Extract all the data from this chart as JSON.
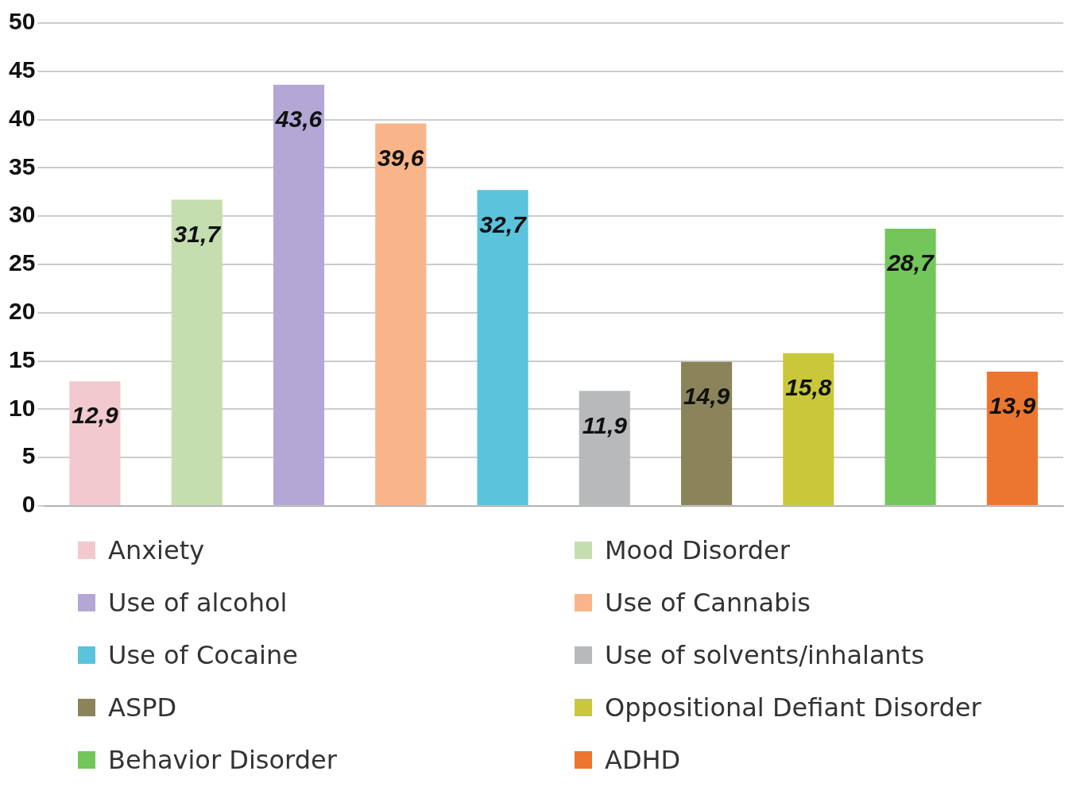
{
  "chart_data": {
    "type": "bar",
    "categories": [
      null,
      null,
      null,
      null,
      null,
      null,
      null,
      null,
      null,
      null
    ],
    "series": [
      {
        "name": "Anxiety",
        "color": "#f2c9cf",
        "values": [
          12.9,
          null,
          null,
          null,
          null,
          null,
          null,
          null,
          null,
          null
        ],
        "value_labels": [
          "12,9",
          null,
          null,
          null,
          null,
          null,
          null,
          null,
          null,
          null
        ]
      },
      {
        "name": "Mood Disorder",
        "color": "#c5deb0",
        "values": [
          null,
          31.7,
          null,
          null,
          null,
          null,
          null,
          null,
          null,
          null
        ],
        "value_labels": [
          null,
          "31,7",
          null,
          null,
          null,
          null,
          null,
          null,
          null,
          null
        ]
      },
      {
        "name": "Use of alcohol",
        "color": "#b4a7d6",
        "values": [
          null,
          null,
          43.6,
          null,
          null,
          null,
          null,
          null,
          null,
          null
        ],
        "value_labels": [
          null,
          null,
          "43,6",
          null,
          null,
          null,
          null,
          null,
          null,
          null
        ]
      },
      {
        "name": "Use of Cannabis",
        "color": "#f9b48a",
        "values": [
          null,
          null,
          null,
          39.6,
          null,
          null,
          null,
          null,
          null,
          null
        ],
        "value_labels": [
          null,
          null,
          null,
          "39,6",
          null,
          null,
          null,
          null,
          null,
          null
        ]
      },
      {
        "name": "Use of Cocaine",
        "color": "#5bc3dc",
        "values": [
          null,
          null,
          null,
          null,
          32.7,
          null,
          null,
          null,
          null,
          null
        ],
        "value_labels": [
          null,
          null,
          null,
          null,
          "32,7",
          null,
          null,
          null,
          null,
          null
        ]
      },
      {
        "name": "Use of solvents/inhalants",
        "color": "#b7b9bb",
        "values": [
          null,
          null,
          null,
          null,
          null,
          11.9,
          null,
          null,
          null,
          null
        ],
        "value_labels": [
          null,
          null,
          null,
          null,
          null,
          "11,9",
          null,
          null,
          null,
          null
        ]
      },
      {
        "name": "ASPD",
        "color": "#8b845a",
        "values": [
          null,
          null,
          null,
          null,
          null,
          null,
          14.9,
          null,
          null,
          null
        ],
        "value_labels": [
          null,
          null,
          null,
          null,
          null,
          null,
          "14,9",
          null,
          null,
          null
        ]
      },
      {
        "name": "Oppositional Defiant  Disorder",
        "color": "#c8c83a",
        "values": [
          null,
          null,
          null,
          null,
          null,
          null,
          null,
          15.8,
          null,
          null
        ],
        "value_labels": [
          null,
          null,
          null,
          null,
          null,
          null,
          null,
          "15,8",
          null,
          null
        ]
      },
      {
        "name": "Behavior Disorder",
        "color": "#72c65a",
        "values": [
          null,
          null,
          null,
          null,
          null,
          null,
          null,
          null,
          28.7,
          null
        ],
        "value_labels": [
          null,
          null,
          null,
          null,
          null,
          null,
          null,
          null,
          "28,7",
          null
        ]
      },
      {
        "name": "ADHD",
        "color": "#ec7630",
        "values": [
          null,
          null,
          null,
          null,
          null,
          null,
          null,
          null,
          null,
          13.9
        ],
        "value_labels": [
          null,
          null,
          null,
          null,
          null,
          null,
          null,
          null,
          null,
          "13,9"
        ]
      }
    ],
    "ylim": [
      0,
      50
    ],
    "yticks": [
      0,
      5,
      10,
      15,
      20,
      25,
      30,
      35,
      40,
      45,
      50
    ],
    "grid": "y",
    "legend": "bottom"
  }
}
